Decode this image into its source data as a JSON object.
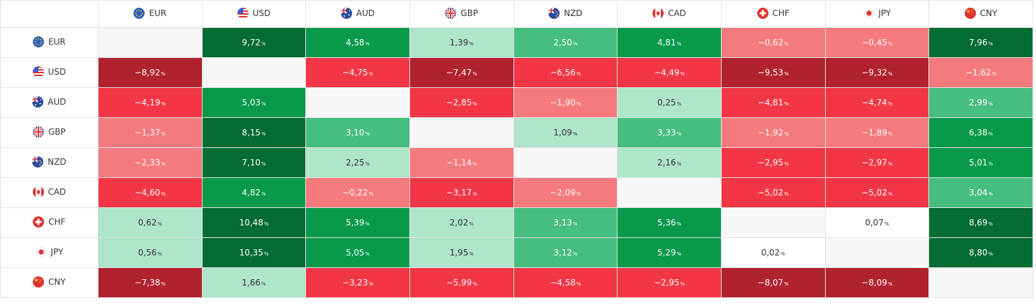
{
  "currencies": [
    {
      "code": "EUR",
      "flag": "eu-flag-icon"
    },
    {
      "code": "USD",
      "flag": "us-flag-icon"
    },
    {
      "code": "AUD",
      "flag": "au-flag-icon"
    },
    {
      "code": "GBP",
      "flag": "gb-flag-icon"
    },
    {
      "code": "NZD",
      "flag": "nz-flag-icon"
    },
    {
      "code": "CAD",
      "flag": "ca-flag-icon"
    },
    {
      "code": "CHF",
      "flag": "ch-flag-icon"
    },
    {
      "code": "JPY",
      "flag": "jp-flag-icon"
    },
    {
      "code": "CNY",
      "flag": "cn-flag-icon"
    }
  ],
  "percent_symbol": "%",
  "rows": [
    [
      null,
      "9,72",
      "4,58",
      "1,39",
      "2,50",
      "4,81",
      "−0,62",
      "−0,45",
      "7,96"
    ],
    [
      "−8,92",
      null,
      "−4,75",
      "−7,47",
      "−6,56",
      "−4,49",
      "−9,53",
      "−9,32",
      "−1,62"
    ],
    [
      "−4,19",
      "5,03",
      null,
      "−2,85",
      "−1,90",
      "0,25",
      "−4,81",
      "−4,74",
      "2,99"
    ],
    [
      "−1,37",
      "8,15",
      "3,10",
      null,
      "1,09",
      "3,33",
      "−1,92",
      "−1,89",
      "6,38"
    ],
    [
      "−2,33",
      "7,10",
      "2,25",
      "−1,14",
      null,
      "2,16",
      "−2,95",
      "−2,97",
      "5,01"
    ],
    [
      "−4,60",
      "4,82",
      "−0,22",
      "−3,17",
      "−2,09",
      null,
      "−5,02",
      "−5,02",
      "3,04"
    ],
    [
      "0,62",
      "10,48",
      "5,39",
      "2,02",
      "3,13",
      "5,36",
      null,
      "0,07",
      "8,69"
    ],
    [
      "0,56",
      "10,35",
      "5,05",
      "1,95",
      "3,12",
      "5,29",
      "0,02",
      null,
      "8,80"
    ],
    [
      "−7,38",
      "1,66",
      "−3,23",
      "−5,99",
      "−4,58",
      "−2,95",
      "−8,07",
      "−8,09",
      null
    ]
  ],
  "colors": {
    "green_dark": "#036b34",
    "green": "#08994b",
    "green_mid": "#46be80",
    "green_light": "#aee5cb",
    "red_light": "#f47a7e",
    "red": "#f23645",
    "red_dark": "#b1222f",
    "neutral": "#ffffff",
    "diagonal": "#f7f7f7",
    "grid": "#e4e4e4"
  }
}
